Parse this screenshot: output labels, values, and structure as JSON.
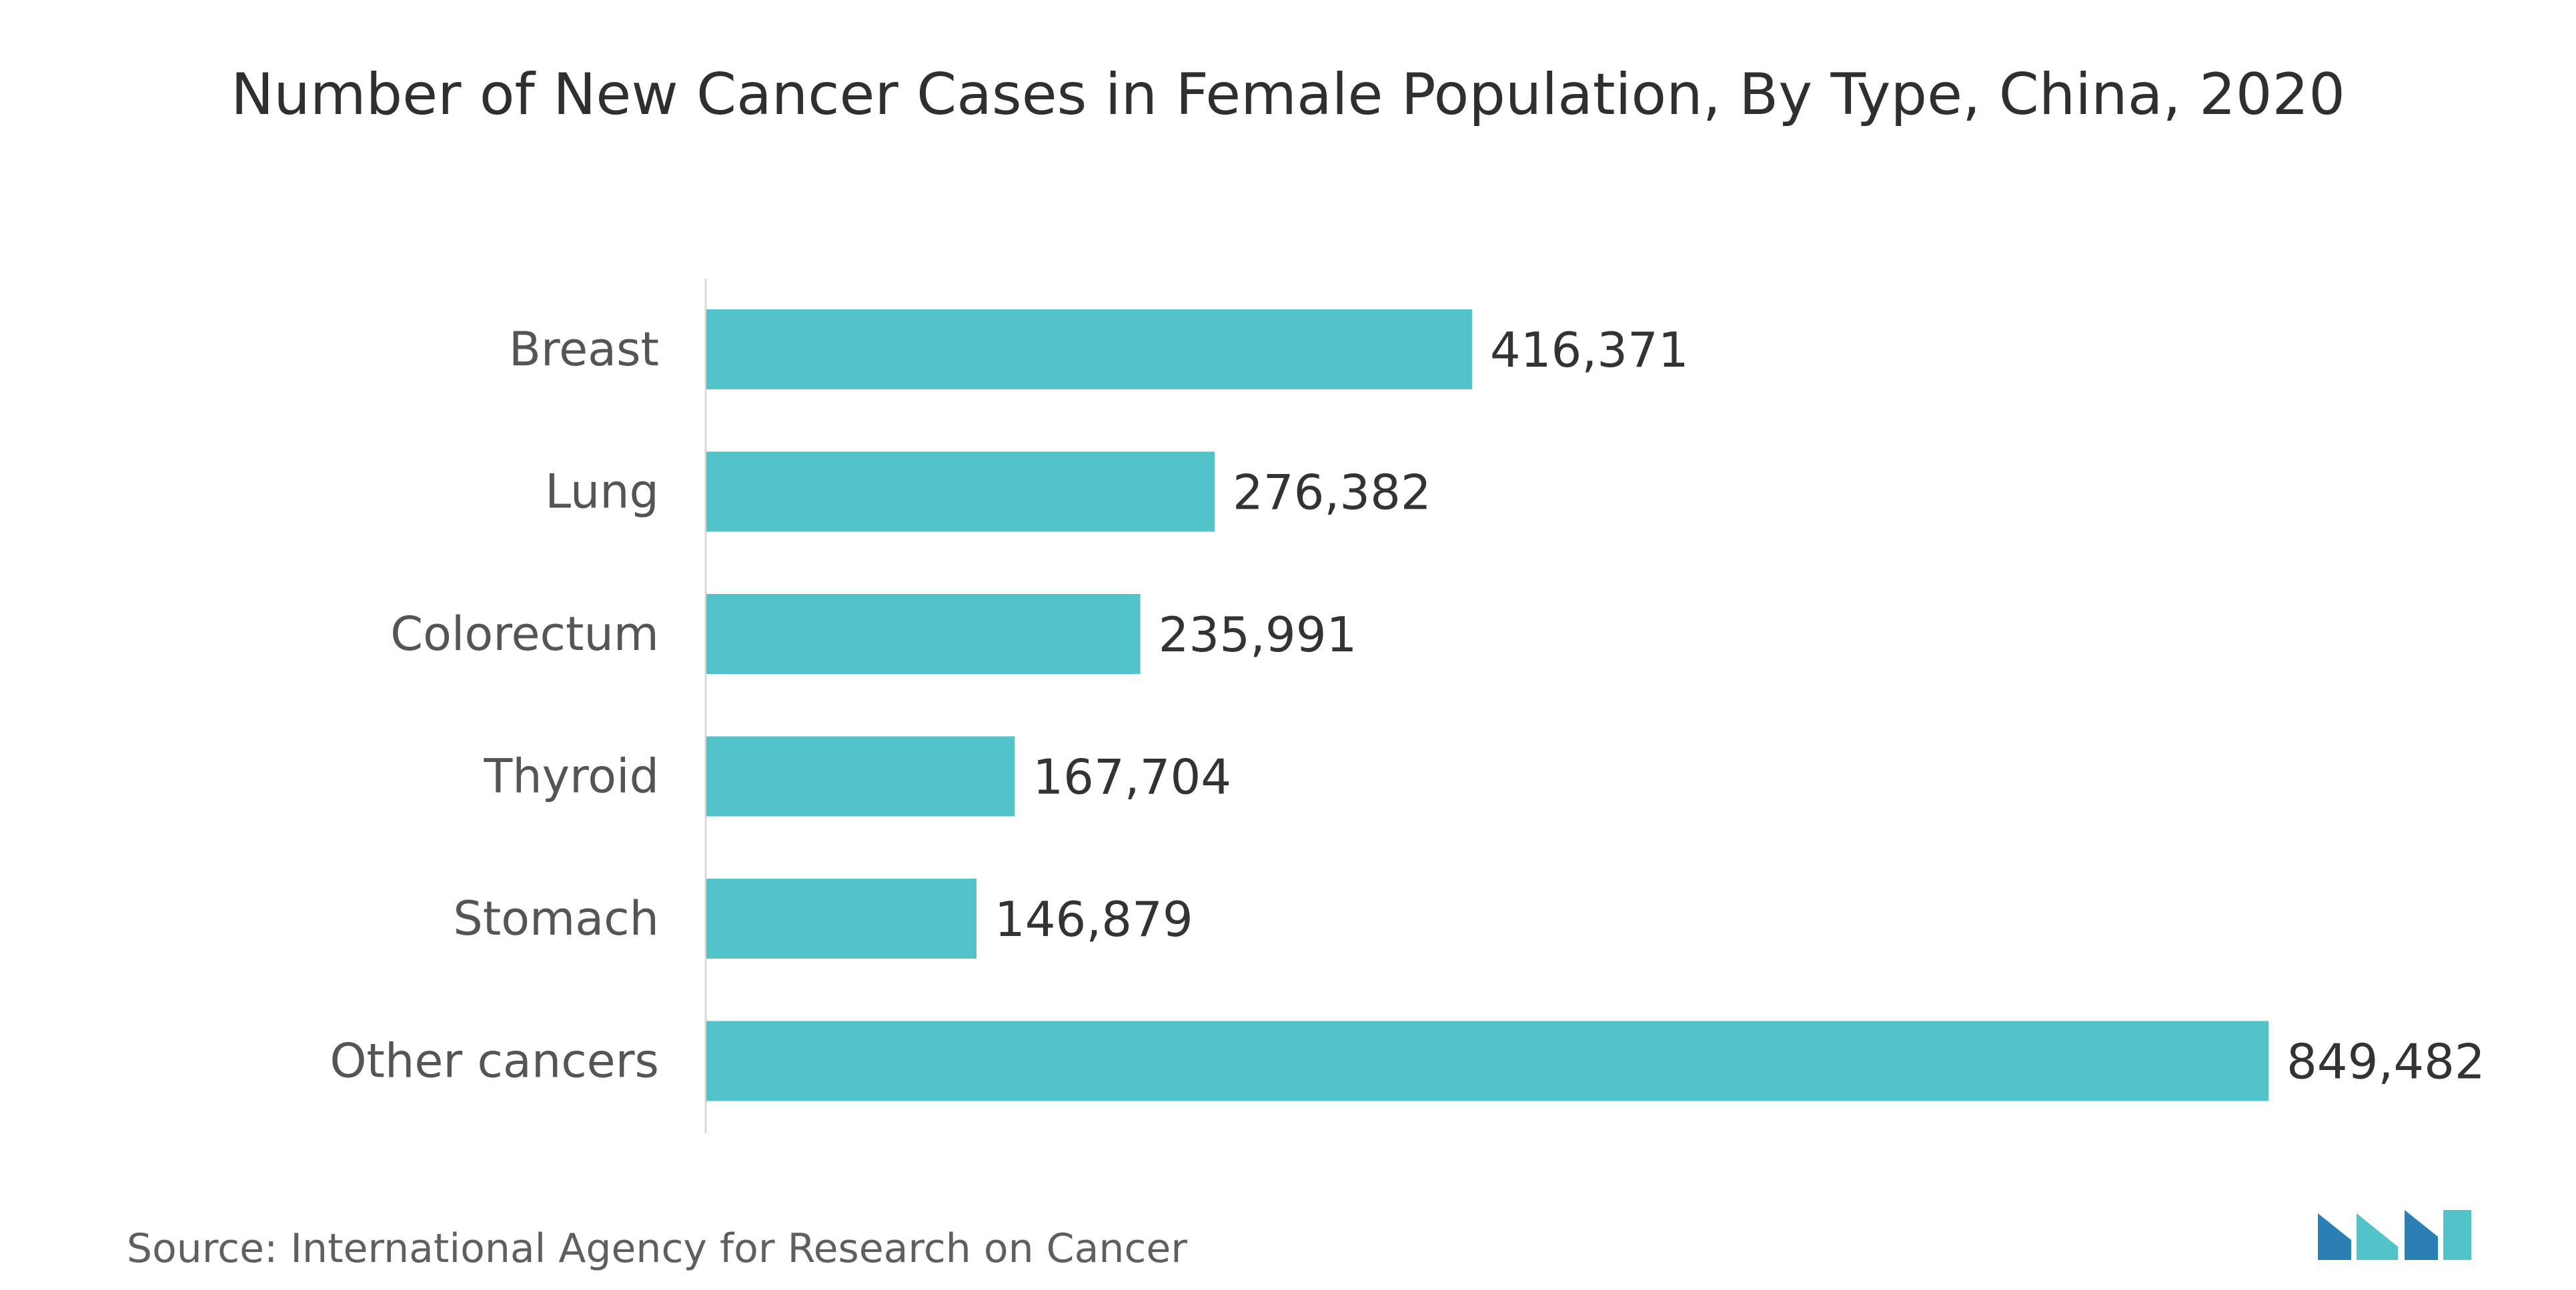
{
  "chart_data": {
    "type": "bar",
    "orientation": "horizontal",
    "title": "Number of New Cancer Cases in Female Population, By Type, China, 2020",
    "categories": [
      "Breast",
      "Lung",
      "Colorectum",
      "Thyroid",
      "Stomach",
      "Other cancers"
    ],
    "values": [
      416371,
      276382,
      235991,
      167704,
      146879,
      849482
    ],
    "value_labels": [
      "416,371",
      "276,382",
      "235,991",
      "167,704",
      "146,879",
      "849,482"
    ],
    "xlabel": "",
    "ylabel": "",
    "xlim": [
      0,
      849482
    ],
    "grid": false,
    "legend": "none",
    "bar_color": "#52c3c9"
  },
  "source": "Source: International Agency for Research on Cancer",
  "logo": {
    "icon": "mordor-logo-icon",
    "colors": [
      "#2a7fb5",
      "#52c3c9"
    ]
  }
}
